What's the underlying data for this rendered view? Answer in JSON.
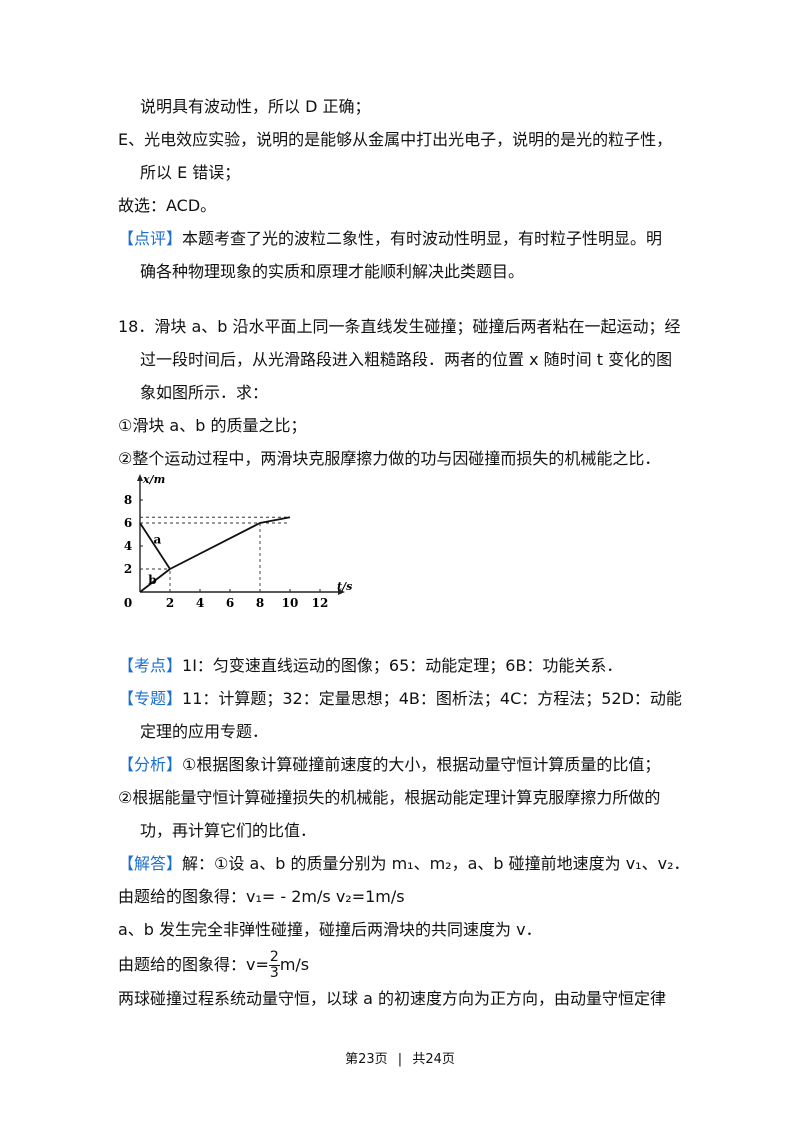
{
  "lines": {
    "l1": "说明具有波动性，所以 D 正确；",
    "l2": "E、光电效应实验，说明的是能够从金属中打出光电子，说明的是光的粒子性，",
    "l3": "所以 E 错误；",
    "l4": "故选：ACD。",
    "dianping_tag": "【点评】",
    "dianping_1": "本题考查了光的波粒二象性，有时波动性明显，有时粒子性明显。明",
    "dianping_2": "确各种物理现象的实质和原理才能顺利解决此类题目。",
    "q18_1": "18．滑块 a、b 沿水平面上同一条直线发生碰撞；碰撞后两者粘在一起运动；经",
    "q18_2": "过一段时间后，从光滑路段进入粗糙路段．两者的位置 x 随时间 t 变化的图",
    "q18_3": "象如图所示．求：",
    "q18_4": "①滑块 a、b 的质量之比；",
    "q18_5": "②整个运动过程中，两滑块克服摩擦力做的功与因碰撞而损失的机械能之比．",
    "kaodian_tag": "【考点】",
    "kaodian": "1I：匀变速直线运动的图像；65：动能定理；6B：功能关系．",
    "zhuanti_tag": "【专题】",
    "zhuanti_1": "11：计算题；32：定量思想；4B：图析法；4C：方程法；52D：动能",
    "zhuanti_2": "定理的应用专题．",
    "fenxi_tag": "【分析】",
    "fenxi_1": "①根据图象计算碰撞前速度的大小，根据动量守恒计算质量的比值；",
    "fenxi_2": "②根据能量守恒计算碰撞损失的机械能，根据动能定理计算克服摩擦力所做的",
    "fenxi_3": "功，再计算它们的比值．",
    "jieda_tag": "【解答】",
    "jieda_1": "解：①设 a、b 的质量分别为 m₁、m₂，a、b 碰撞前地速度为 v₁、v₂．",
    "jieda_2": "由题给的图象得：v₁= - 2m/s      v₂=1m/s",
    "jieda_3": "a、b 发生完全非弹性碰撞，碰撞后两滑块的共同速度为 v．",
    "jieda_4_pre": "由题给的图象得：v=",
    "jieda_4_num": "2",
    "jieda_4_den": "3",
    "jieda_4_post": "m/s",
    "jieda_5": "两球碰撞过程系统动量守恒，以球 a 的初速度方向为正方向，由动量守恒定律"
  },
  "chart_data": {
    "type": "line",
    "xlabel": "t/s",
    "ylabel": "x/m",
    "x_ticks": [
      "0",
      "2",
      "4",
      "6",
      "8",
      "10",
      "12"
    ],
    "y_ticks": [
      "2",
      "4",
      "6",
      "8"
    ],
    "xlim": [
      0,
      13
    ],
    "ylim": [
      0,
      9
    ],
    "series": [
      {
        "name": "a",
        "points": [
          [
            0,
            6
          ],
          [
            2,
            2
          ]
        ]
      },
      {
        "name": "b",
        "points": [
          [
            0,
            0
          ],
          [
            2,
            2
          ]
        ]
      },
      {
        "name": "",
        "points": [
          [
            2,
            2
          ],
          [
            8,
            6
          ],
          [
            10,
            6.5
          ]
        ]
      }
    ],
    "dashed_levels_y": [
      6,
      6.5
    ],
    "dashed_marks_x": [
      2,
      8
    ]
  },
  "footer": {
    "page": "第23页",
    "sep": "|",
    "total": "共24页"
  }
}
